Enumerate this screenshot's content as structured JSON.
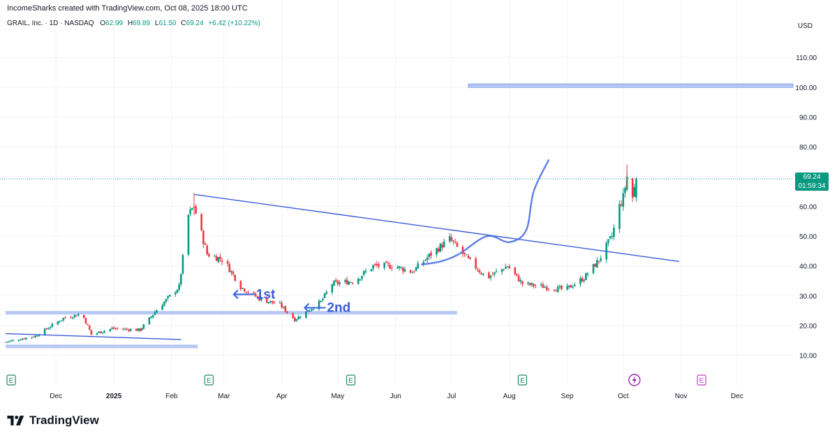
{
  "header": {
    "credit": "IncomeSharks created with TradingView.com, Oct 08, 2025 18:00 UTC",
    "symbol": "GRAIL, Inc. · 1D · NASDAQ",
    "ohlc": {
      "o_label": "O",
      "o_value": "62.99",
      "h_label": "H",
      "h_value": "69.89",
      "l_label": "L",
      "l_value": "61.50",
      "c_label": "C",
      "c_value": "69.24",
      "change": "+6.42 (+10.22%)"
    }
  },
  "price_tag": {
    "price": "69.24",
    "countdown": "01:59:34"
  },
  "branding": {
    "name": "TradingView",
    "logo_icon": "tradingview-logo-icon"
  },
  "colors": {
    "up": "#089981",
    "down": "#f23645",
    "drawing": "#4169e1",
    "zone": "#b8c8f5",
    "grid": "#f0f3fa"
  },
  "chart_data": {
    "type": "candlestick",
    "currency": "USD",
    "ylim": [
      5,
      118
    ],
    "y_ticks": [
      10,
      20,
      30,
      40,
      50,
      60,
      70,
      80,
      90,
      100,
      110
    ],
    "y_tick_labels": [
      "10.00",
      "20.00",
      "30.00",
      "40.00",
      "50.00",
      "60.00",
      "70.00",
      "80.00",
      "90.00",
      "100.00",
      "110.00"
    ],
    "x_range": [
      "2024-11-04",
      "2025-12-31"
    ],
    "x_ticks": [
      {
        "date": "2024-12-01",
        "label": "Dec",
        "bold": false
      },
      {
        "date": "2025-01-01",
        "label": "2025",
        "bold": true
      },
      {
        "date": "2025-02-01",
        "label": "Feb",
        "bold": false
      },
      {
        "date": "2025-03-01",
        "label": "Mar",
        "bold": false
      },
      {
        "date": "2025-04-01",
        "label": "Apr",
        "bold": false
      },
      {
        "date": "2025-05-01",
        "label": "May",
        "bold": false
      },
      {
        "date": "2025-06-01",
        "label": "Jun",
        "bold": false
      },
      {
        "date": "2025-07-01",
        "label": "Jul",
        "bold": false
      },
      {
        "date": "2025-08-01",
        "label": "Aug",
        "bold": false
      },
      {
        "date": "2025-09-01",
        "label": "Sep",
        "bold": false
      },
      {
        "date": "2025-10-01",
        "label": "Oct",
        "bold": false
      },
      {
        "date": "2025-11-01",
        "label": "Nov",
        "bold": false
      },
      {
        "date": "2025-12-01",
        "label": "Dec",
        "bold": false
      }
    ],
    "price_path": [
      {
        "date": "2024-11-04",
        "price": 14.5
      },
      {
        "date": "2024-11-20",
        "price": 16.5
      },
      {
        "date": "2024-12-05",
        "price": 22.5
      },
      {
        "date": "2024-12-15",
        "price": 24
      },
      {
        "date": "2024-12-20",
        "price": 17
      },
      {
        "date": "2024-12-31",
        "price": 19
      },
      {
        "date": "2025-01-15",
        "price": 18.5
      },
      {
        "date": "2025-01-25",
        "price": 26
      },
      {
        "date": "2025-02-05",
        "price": 33
      },
      {
        "date": "2025-02-10",
        "price": 57
      },
      {
        "date": "2025-02-13",
        "price": 60
      },
      {
        "date": "2025-02-20",
        "price": 44
      },
      {
        "date": "2025-03-01",
        "price": 42
      },
      {
        "date": "2025-03-10",
        "price": 33
      },
      {
        "date": "2025-03-20",
        "price": 29
      },
      {
        "date": "2025-03-31",
        "price": 27
      },
      {
        "date": "2025-04-08",
        "price": 22
      },
      {
        "date": "2025-04-15",
        "price": 25
      },
      {
        "date": "2025-04-22",
        "price": 28
      },
      {
        "date": "2025-04-28",
        "price": 34
      },
      {
        "date": "2025-05-10",
        "price": 35
      },
      {
        "date": "2025-05-20",
        "price": 40
      },
      {
        "date": "2025-05-31",
        "price": 40
      },
      {
        "date": "2025-06-10",
        "price": 38
      },
      {
        "date": "2025-06-20",
        "price": 44
      },
      {
        "date": "2025-06-30",
        "price": 49
      },
      {
        "date": "2025-07-10",
        "price": 42
      },
      {
        "date": "2025-07-20",
        "price": 36
      },
      {
        "date": "2025-07-31",
        "price": 40
      },
      {
        "date": "2025-08-08",
        "price": 34
      },
      {
        "date": "2025-08-20",
        "price": 33
      },
      {
        "date": "2025-08-31",
        "price": 32
      },
      {
        "date": "2025-09-10",
        "price": 36
      },
      {
        "date": "2025-09-18",
        "price": 42
      },
      {
        "date": "2025-09-25",
        "price": 50
      },
      {
        "date": "2025-09-29",
        "price": 60
      },
      {
        "date": "2025-10-01",
        "price": 63
      },
      {
        "date": "2025-10-03",
        "price": 70
      },
      {
        "date": "2025-10-06",
        "price": 63
      },
      {
        "date": "2025-10-08",
        "price": 69.24
      }
    ],
    "last_candle": {
      "date": "2025-10-08",
      "open": 62.99,
      "high": 69.89,
      "low": 61.5,
      "close": 69.24
    },
    "drawings": {
      "trendlines": [
        {
          "name": "descending-resistance",
          "from": {
            "date": "2025-02-13",
            "price": 64
          },
          "to": {
            "date": "2025-10-31",
            "price": 41.5
          }
        },
        {
          "name": "lower-trendline",
          "from": {
            "date": "2024-11-04",
            "price": 17.3
          },
          "to": {
            "date": "2025-02-06",
            "price": 15.3
          }
        }
      ],
      "zones": [
        {
          "name": "support-zone-24",
          "from": "2024-11-04",
          "to": "2025-07-04",
          "price": 24.3
        },
        {
          "name": "support-zone-13",
          "from": "2024-11-04",
          "to": "2025-02-15",
          "price": 13.0
        },
        {
          "name": "target-zone-100",
          "from": "2025-07-10",
          "to": "2025-12-31",
          "price": 100.5
        }
      ],
      "projection": [
        {
          "date": "2025-06-15",
          "price": 40.5
        },
        {
          "date": "2025-06-25",
          "price": 41.5
        },
        {
          "date": "2025-07-05",
          "price": 44
        },
        {
          "date": "2025-07-20",
          "price": 50
        },
        {
          "date": "2025-08-01",
          "price": 48
        },
        {
          "date": "2025-08-10",
          "price": 52
        },
        {
          "date": "2025-08-14",
          "price": 65
        },
        {
          "date": "2025-08-22",
          "price": 75.5
        }
      ],
      "labels": [
        {
          "text": "1st",
          "date": "2025-03-19",
          "price": 30
        },
        {
          "text": "2nd",
          "date": "2025-04-26",
          "price": 25.5
        }
      ]
    },
    "event_markers": [
      {
        "date": "2024-11-07",
        "letter": "E"
      },
      {
        "date": "2025-02-21",
        "letter": "E"
      },
      {
        "date": "2025-05-08",
        "letter": "E"
      },
      {
        "date": "2025-08-08",
        "letter": "E"
      },
      {
        "date": "2025-11-12",
        "letter": "E"
      }
    ],
    "dividend_icon": {
      "date": "2025-10-07",
      "icon": "lightning-icon"
    }
  }
}
